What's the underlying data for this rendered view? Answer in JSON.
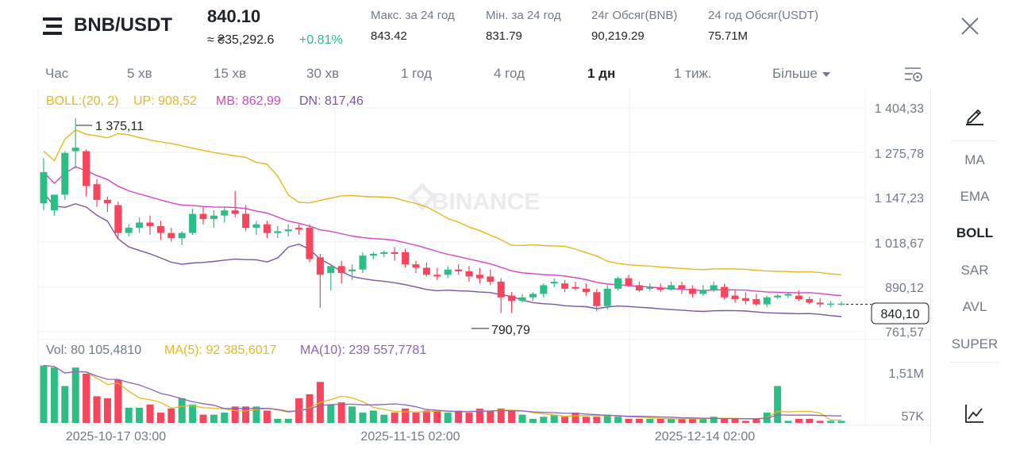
{
  "header": {
    "pair": "BNB/USDT",
    "price": "840.10",
    "fiat_price": "≈ ₴35,292.6",
    "change": "+0.81%",
    "stats": [
      {
        "label": "Макс. за 24 год",
        "value": "843.42"
      },
      {
        "label": "Мін. за 24 год",
        "value": "831.79"
      },
      {
        "label": "24г Обсяг(BNB)",
        "value": "90,219.29"
      },
      {
        "label": "24 год Обсяг(USDT)",
        "value": "75.71M"
      }
    ]
  },
  "intervals": [
    "Час",
    "5 хв",
    "15 хв",
    "30 хв",
    "1 год",
    "4 год",
    "1 дн",
    "1 тиж.",
    "Більше"
  ],
  "active_interval": "1 дн",
  "indicators": [
    "MA",
    "EMA",
    "BOLL",
    "SAR",
    "AVL",
    "SUPER"
  ],
  "active_indicator": "BOLL",
  "boll_legend": {
    "label": "BOLL:(20, 2)",
    "up": "UP: 908,52",
    "mb": "MB: 862,99",
    "dn": "DN: 817,46"
  },
  "vol_legend": {
    "vol": "Vol: 80 105,4810",
    "ma5": "MA(5): 92 385,6017",
    "ma10": "MA(10): 239 557,7781"
  },
  "price_axis": [
    "1 404,33",
    "1 275,78",
    "1 147,23",
    "1 018,67",
    "890,12",
    "761,57"
  ],
  "volume_axis": [
    "1,51M",
    "57K"
  ],
  "time_axis": [
    "2025-10-17 03:00",
    "2025-11-15 02:00",
    "2025-12-14 02:00"
  ],
  "current_price_label": "840,10",
  "max_label": "1 375,11",
  "min_label": "790,79",
  "watermark": "BINANCE",
  "colors": {
    "up": "#2ebd85",
    "down": "#f6465d",
    "boll_up": "#e6b81e",
    "boll_mb": "#d643c6",
    "boll_dn": "#7a55a6",
    "ma5": "#e6b81e",
    "ma10": "#8a63b8"
  },
  "chart_data": {
    "type": "candlestick",
    "interval": "1 дн",
    "price_axis_ticks": [
      1404.33,
      1275.78,
      1147.23,
      1018.67,
      890.12,
      761.57
    ],
    "current_price": 840.1,
    "max": 1375.11,
    "min": 790.79,
    "candles": [
      [
        1130,
        1260,
        1220,
        1110
      ],
      [
        1110,
        1150,
        1155,
        1095
      ],
      [
        1155,
        1280,
        1275,
        1140
      ],
      [
        1280,
        1375,
        1290,
        1230
      ],
      [
        1280,
        1285,
        1180,
        1150
      ],
      [
        1185,
        1200,
        1140,
        1120
      ],
      [
        1140,
        1150,
        1130,
        1105
      ],
      [
        1125,
        1135,
        1045,
        1030
      ],
      [
        1045,
        1070,
        1060,
        1035
      ],
      [
        1060,
        1090,
        1075,
        1045
      ],
      [
        1075,
        1095,
        1065,
        1040
      ],
      [
        1065,
        1080,
        1045,
        1025
      ],
      [
        1045,
        1060,
        1030,
        1020
      ],
      [
        1030,
        1050,
        1045,
        1010
      ],
      [
        1045,
        1115,
        1100,
        1040
      ],
      [
        1100,
        1120,
        1085,
        1070
      ],
      [
        1085,
        1110,
        1095,
        1060
      ],
      [
        1095,
        1120,
        1110,
        1075
      ],
      [
        1110,
        1165,
        1100,
        1090
      ],
      [
        1100,
        1125,
        1060,
        1050
      ],
      [
        1060,
        1080,
        1070,
        1040
      ],
      [
        1070,
        1080,
        1045,
        1030
      ],
      [
        1045,
        1065,
        1050,
        1030
      ],
      [
        1050,
        1070,
        1055,
        1035
      ],
      [
        1060,
        1070,
        1055,
        1040
      ],
      [
        1060,
        1070,
        970,
        960
      ],
      [
        975,
        985,
        925,
        830
      ],
      [
        930,
        950,
        950,
        880
      ],
      [
        950,
        965,
        930,
        900
      ],
      [
        935,
        955,
        940,
        910
      ],
      [
        940,
        990,
        980,
        930
      ],
      [
        980,
        990,
        985,
        970
      ],
      [
        985,
        995,
        990,
        975
      ],
      [
        990,
        1005,
        985,
        965
      ],
      [
        990,
        1000,
        955,
        945
      ],
      [
        955,
        965,
        945,
        930
      ],
      [
        945,
        960,
        925,
        920
      ],
      [
        925,
        945,
        920,
        910
      ],
      [
        925,
        950,
        940,
        915
      ],
      [
        940,
        955,
        935,
        925
      ],
      [
        935,
        950,
        920,
        905
      ],
      [
        925,
        945,
        915,
        900
      ],
      [
        920,
        940,
        905,
        895
      ],
      [
        905,
        915,
        860,
        815
      ],
      [
        865,
        875,
        850,
        815
      ],
      [
        850,
        870,
        860,
        845
      ],
      [
        860,
        875,
        870,
        850
      ],
      [
        870,
        900,
        895,
        860
      ],
      [
        900,
        915,
        905,
        890
      ],
      [
        900,
        910,
        885,
        875
      ],
      [
        890,
        905,
        885,
        880
      ],
      [
        885,
        900,
        875,
        865
      ],
      [
        875,
        885,
        835,
        820
      ],
      [
        835,
        895,
        885,
        825
      ],
      [
        885,
        920,
        915,
        880
      ],
      [
        915,
        925,
        895,
        890
      ],
      [
        895,
        905,
        880,
        875
      ],
      [
        885,
        900,
        888,
        878
      ],
      [
        888,
        900,
        882,
        875
      ],
      [
        882,
        905,
        895,
        880
      ],
      [
        895,
        905,
        885,
        870
      ],
      [
        885,
        895,
        870,
        860
      ],
      [
        870,
        895,
        880,
        865
      ],
      [
        880,
        905,
        895,
        875
      ],
      [
        890,
        900,
        860,
        855
      ],
      [
        865,
        880,
        855,
        845
      ],
      [
        858,
        875,
        850,
        840
      ],
      [
        855,
        870,
        840,
        835
      ],
      [
        840,
        865,
        860,
        832
      ],
      [
        860,
        870,
        865,
        855
      ],
      [
        865,
        875,
        870,
        858
      ],
      [
        865,
        880,
        855,
        850
      ],
      [
        855,
        862,
        845,
        840
      ],
      [
        845,
        858,
        840,
        832
      ],
      [
        840,
        850,
        842,
        832
      ],
      [
        840,
        848,
        842,
        836
      ]
    ],
    "volume": [
      1.4,
      1.35,
      0.9,
      1.35,
      1.2,
      0.65,
      0.6,
      1.05,
      0.37,
      0.37,
      0.45,
      0.25,
      0.35,
      0.6,
      0.45,
      0.2,
      0.2,
      0.25,
      0.4,
      0.4,
      0.4,
      0.3,
      0.1,
      0.1,
      0.6,
      0.7,
      1.0,
      0.45,
      0.5,
      0.4,
      0.25,
      0.3,
      0.2,
      0.25,
      0.35,
      0.25,
      0.3,
      0.3,
      0.25,
      0.3,
      0.25,
      0.35,
      0.3,
      0.35,
      0.3,
      0.2,
      0.1,
      0.15,
      0.2,
      0.15,
      0.25,
      0.15,
      0.15,
      0.2,
      0.15,
      0.1,
      0.1,
      0.1,
      0.1,
      0.1,
      0.1,
      0.1,
      0.1,
      0.15,
      0.1,
      0.1,
      0.05,
      0.1,
      0.25,
      0.9,
      0.05,
      0.1,
      0.1,
      0.05,
      0.05,
      0.05
    ]
  }
}
